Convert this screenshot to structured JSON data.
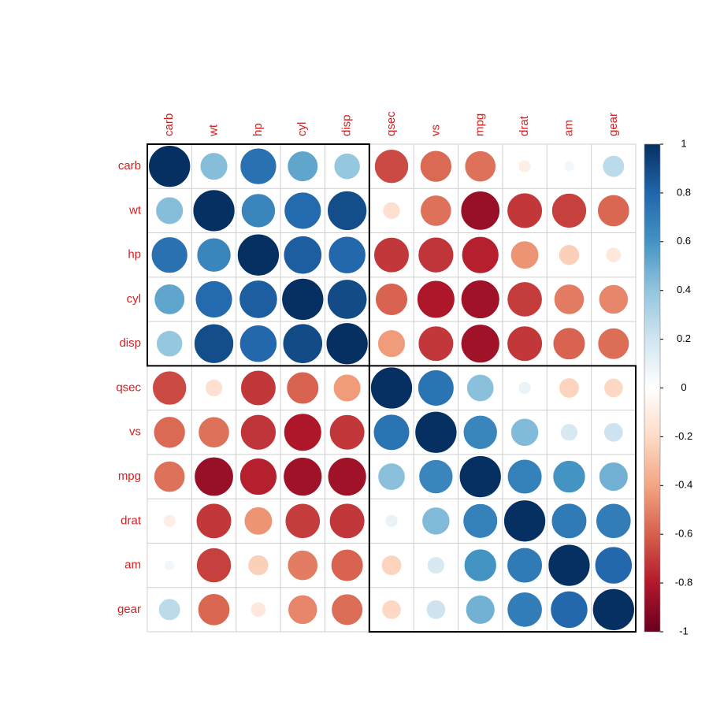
{
  "chart_data": {
    "type": "corrplot",
    "categories": [
      "carb",
      "wt",
      "hp",
      "cyl",
      "disp",
      "qsec",
      "vs",
      "mpg",
      "drat",
      "am",
      "gear"
    ],
    "values": [
      [
        1,
        0.43,
        0.75,
        0.53,
        0.39,
        -0.66,
        -0.57,
        -0.55,
        -0.09,
        0.06,
        0.27
      ],
      [
        0.43,
        1,
        0.66,
        0.78,
        0.89,
        -0.17,
        -0.55,
        -0.87,
        -0.71,
        -0.69,
        -0.58
      ],
      [
        0.75,
        0.66,
        1,
        0.83,
        0.79,
        -0.71,
        -0.72,
        -0.78,
        -0.45,
        -0.24,
        -0.13
      ],
      [
        0.53,
        0.78,
        0.83,
        1,
        0.9,
        -0.59,
        -0.81,
        -0.85,
        -0.7,
        -0.52,
        -0.49
      ],
      [
        0.39,
        0.89,
        0.79,
        0.9,
        1,
        -0.43,
        -0.71,
        -0.85,
        -0.71,
        -0.59,
        -0.56
      ],
      [
        -0.66,
        -0.17,
        -0.71,
        -0.59,
        -0.43,
        1,
        0.74,
        0.42,
        0.09,
        -0.23,
        -0.21
      ],
      [
        -0.57,
        -0.55,
        -0.72,
        -0.81,
        -0.71,
        0.74,
        1,
        0.66,
        0.44,
        0.17,
        0.21
      ],
      [
        -0.55,
        -0.87,
        -0.78,
        -0.85,
        -0.85,
        0.42,
        0.66,
        1,
        0.68,
        0.6,
        0.48
      ],
      [
        -0.09,
        -0.71,
        -0.45,
        -0.7,
        -0.71,
        0.09,
        0.44,
        0.68,
        1,
        0.71,
        0.7
      ],
      [
        0.06,
        -0.69,
        -0.24,
        -0.52,
        -0.59,
        -0.23,
        0.17,
        0.6,
        0.71,
        1,
        0.79
      ],
      [
        0.27,
        -0.58,
        -0.13,
        -0.49,
        -0.56,
        -0.21,
        0.21,
        0.48,
        0.7,
        0.79,
        1
      ]
    ],
    "cluster_sizes": [
      5,
      6
    ],
    "colorscale": [
      "#67001F",
      "#B2182B",
      "#D6604D",
      "#F4A582",
      "#FDDBC7",
      "#FFFFFF",
      "#D1E5F0",
      "#92C5DE",
      "#4393C3",
      "#2166AC",
      "#053061"
    ],
    "clim": [
      -1,
      1
    ],
    "cticks": [
      -1,
      -0.8,
      -0.6,
      -0.4,
      -0.2,
      0,
      0.2,
      0.4,
      0.6,
      0.8,
      1
    ]
  }
}
